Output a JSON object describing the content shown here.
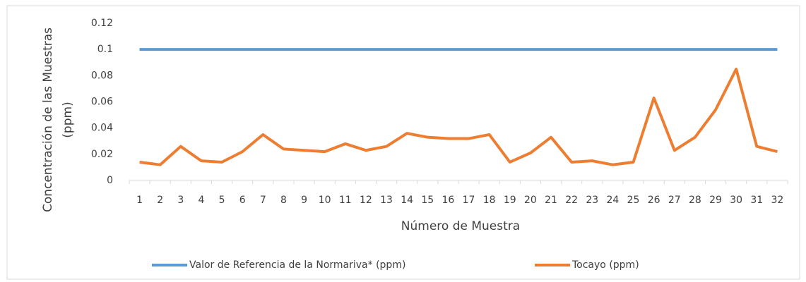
{
  "chart_data": {
    "type": "line",
    "ylabel": [
      "Concentración de las Muestras",
      "(ppm)"
    ],
    "xlabel": "Número de Muestra",
    "categories": [
      "1",
      "2",
      "3",
      "4",
      "5",
      "6",
      "7",
      "8",
      "9",
      "10",
      "11",
      "12",
      "13",
      "14",
      "15",
      "16",
      "17",
      "18",
      "19",
      "20",
      "21",
      "22",
      "23",
      "24",
      "25",
      "26",
      "27",
      "28",
      "29",
      "30",
      "31",
      "32"
    ],
    "series": [
      {
        "name": "Valor de Referencia de la Normariva* (ppm)",
        "color": "#5b9bd5",
        "values": [
          0.1,
          0.1,
          0.1,
          0.1,
          0.1,
          0.1,
          0.1,
          0.1,
          0.1,
          0.1,
          0.1,
          0.1,
          0.1,
          0.1,
          0.1,
          0.1,
          0.1,
          0.1,
          0.1,
          0.1,
          0.1,
          0.1,
          0.1,
          0.1,
          0.1,
          0.1,
          0.1,
          0.1,
          0.1,
          0.1,
          0.1,
          0.1
        ]
      },
      {
        "name": "Tocayo (ppm)",
        "color": "#ed7d31",
        "values": [
          0.014,
          0.012,
          0.026,
          0.015,
          0.014,
          0.022,
          0.035,
          0.024,
          0.023,
          0.022,
          0.028,
          0.023,
          0.026,
          0.036,
          0.033,
          0.032,
          0.032,
          0.035,
          0.014,
          0.021,
          0.033,
          0.014,
          0.015,
          0.012,
          0.014,
          0.063,
          0.023,
          0.033,
          0.054,
          0.085,
          0.026,
          0.022
        ]
      }
    ],
    "ylim": [
      0,
      0.12
    ],
    "yticks": [
      0,
      0.02,
      0.04,
      0.06,
      0.08,
      0.1,
      0.12
    ],
    "grid": false,
    "legend": "bottom"
  }
}
